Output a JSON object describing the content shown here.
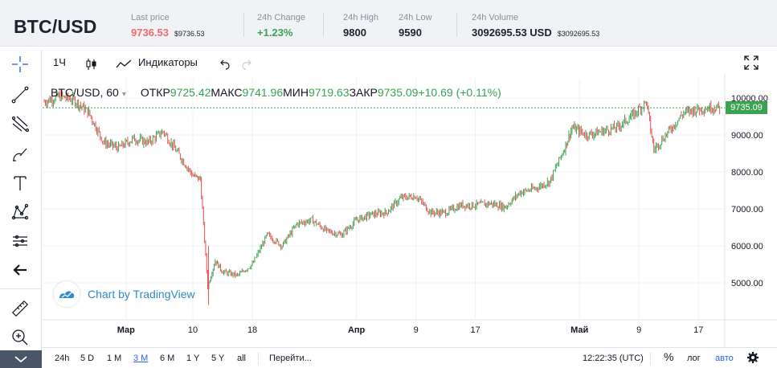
{
  "header": {
    "pair": "BTC/USD",
    "stats": [
      {
        "label": "Last price",
        "value": "9736.53",
        "sub": "$9736.53",
        "color": "#f06b6b"
      },
      {
        "label": "24h Change",
        "value": "+1.23%",
        "sub": "",
        "color": "#3aa251"
      },
      {
        "label": "24h High",
        "value": "9800",
        "sub": "",
        "color": "#1e222d"
      },
      {
        "label": "24h Low",
        "value": "9590",
        "sub": "",
        "color": "#1e222d"
      },
      {
        "label": "24h Volume",
        "value": "3092695.53 USD",
        "sub": "$3092695.53",
        "color": "#1e222d"
      }
    ]
  },
  "toolbar": {
    "interval": "1Ч",
    "indicators": "Индикаторы"
  },
  "left_tools": [
    "crosshair-icon",
    "trend-line-icon",
    "pitchfork-icon",
    "brush-icon",
    "text-icon",
    "pattern-icon",
    "measure-icon",
    "back-arrow-icon",
    "ruler-icon",
    "zoom-in-icon",
    "chevron-down-icon"
  ],
  "legend": {
    "symbol": "BTC/USD, 60",
    "open_label": "ОТКР",
    "open": "9725.42",
    "high_label": "МАКС",
    "high": "9741.96",
    "low_label": "МИН",
    "low": "9719.63",
    "close_label": "ЗАКР",
    "close": "9735.09",
    "change": "+10.69 (+0.11%)"
  },
  "watermark": "Chart by TradingView",
  "price_tag": "9735.09",
  "bottom": {
    "ranges": [
      "24h",
      "5 D",
      "1 M",
      "3 M",
      "6 M",
      "1 Y",
      "5 Y",
      "all"
    ],
    "active_range": "3 M",
    "goto": "Перейти...",
    "time": "12:22:35 (UTC)",
    "percent": "%",
    "log": "лог",
    "auto": "авто"
  },
  "colors": {
    "up": "#3aa251",
    "down": "#e84f4f",
    "accent": "#2962ff"
  },
  "chart_data": {
    "type": "line",
    "title": "BTC/USD, 60",
    "ylim": [
      4300,
      10250
    ],
    "yticks": [
      "10000.00",
      "9000.00",
      "8000.00",
      "7000.00",
      "6000.00",
      "5000.00"
    ],
    "xticks": [
      "Мар",
      "10",
      "18",
      "Апр",
      "9",
      "17",
      "Май",
      "9",
      "17"
    ],
    "series": [
      {
        "x": [
          "2020-02-19",
          "2020-02-21",
          "2020-02-23",
          "2020-02-25",
          "2020-02-27",
          "2020-02-29",
          "2020-03-02",
          "2020-03-04",
          "2020-03-06",
          "2020-03-08",
          "2020-03-10",
          "2020-03-11",
          "2020-03-12",
          "2020-03-13",
          "2020-03-14",
          "2020-03-16",
          "2020-03-18",
          "2020-03-20",
          "2020-03-22",
          "2020-03-24",
          "2020-03-26",
          "2020-03-28",
          "2020-03-30",
          "2020-04-01",
          "2020-04-03",
          "2020-04-05",
          "2020-04-07",
          "2020-04-09",
          "2020-04-11",
          "2020-04-13",
          "2020-04-15",
          "2020-04-17",
          "2020-04-19",
          "2020-04-21",
          "2020-04-23",
          "2020-04-25",
          "2020-04-27",
          "2020-04-29",
          "2020-04-30",
          "2020-05-02",
          "2020-05-04",
          "2020-05-06",
          "2020-05-08",
          "2020-05-10",
          "2020-05-11",
          "2020-05-13",
          "2020-05-15",
          "2020-05-17",
          "2020-05-19",
          "2020-05-20"
        ],
        "values": [
          9900,
          10050,
          9950,
          9600,
          8800,
          8650,
          8900,
          8800,
          9100,
          8500,
          7900,
          7800,
          4900,
          5600,
          5300,
          5200,
          5500,
          6300,
          6000,
          6600,
          6700,
          6400,
          6300,
          6700,
          6850,
          6900,
          7300,
          7350,
          6900,
          6900,
          7100,
          7100,
          7150,
          7050,
          7450,
          7550,
          7750,
          8650,
          9200,
          9000,
          9100,
          9200,
          9500,
          9900,
          8600,
          9100,
          9600,
          9700,
          9750,
          9735
        ]
      }
    ]
  }
}
